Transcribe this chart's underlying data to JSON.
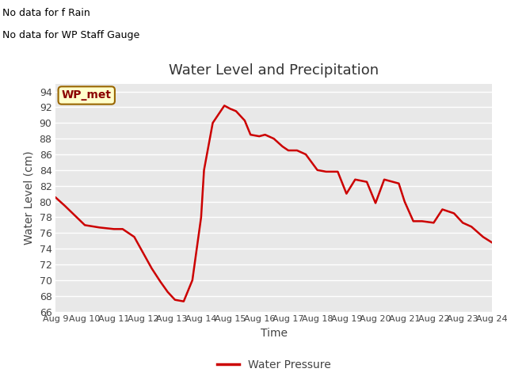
{
  "title": "Water Level and Precipitation",
  "xlabel": "Time",
  "ylabel": "Water Level (cm)",
  "ylim": [
    66,
    95
  ],
  "yticks": [
    66,
    68,
    70,
    72,
    74,
    76,
    78,
    80,
    82,
    84,
    86,
    88,
    90,
    92,
    94
  ],
  "x_labels": [
    "Aug 9",
    "Aug 10",
    "Aug 11",
    "Aug 12",
    "Aug 13",
    "Aug 14",
    "Aug 15",
    "Aug 16",
    "Aug 17",
    "Aug 18",
    "Aug 19",
    "Aug 20",
    "Aug 21",
    "Aug 22",
    "Aug 23",
    "Aug 24"
  ],
  "line_color": "#cc0000",
  "line_width": 1.8,
  "fig_bg_color": "#ffffff",
  "plot_bg_color": "#e8e8e8",
  "grid_color": "#ffffff",
  "annotation_text1": "No data for f Rain",
  "annotation_text2": "No data for WP Staff Gauge",
  "legend_label": "Water Pressure",
  "legend_box_facecolor": "#ffffcc",
  "legend_box_edgecolor": "#996600",
  "legend_text": "WP_met",
  "x_values": [
    9,
    9.3,
    10,
    10.5,
    11,
    11.3,
    11.7,
    12.0,
    12.3,
    12.6,
    12.85,
    13.1,
    13.4,
    13.7,
    14.0,
    14.1,
    14.4,
    14.8,
    15.0,
    15.2,
    15.5,
    15.7,
    16.0,
    16.2,
    16.5,
    16.8,
    17.0,
    17.3,
    17.6,
    18.0,
    18.3,
    18.7,
    19.0,
    19.3,
    19.7,
    20.0,
    20.3,
    20.6,
    20.8,
    21.0,
    21.3,
    21.6,
    22.0,
    22.3,
    22.7,
    23.0,
    23.3,
    23.7,
    24.0
  ],
  "y_values": [
    80.5,
    79.5,
    77.0,
    76.7,
    76.5,
    76.5,
    75.5,
    73.5,
    71.5,
    69.8,
    68.5,
    67.5,
    67.3,
    70.0,
    78.0,
    84.0,
    90.0,
    92.2,
    91.8,
    91.5,
    90.3,
    88.5,
    88.3,
    88.5,
    88.0,
    87.0,
    86.5,
    86.5,
    86.0,
    84.0,
    83.8,
    83.8,
    81.0,
    82.8,
    82.5,
    79.8,
    82.8,
    82.5,
    82.3,
    80.0,
    77.5,
    77.5,
    77.3,
    79.0,
    78.5,
    77.3,
    76.8,
    75.5,
    74.8
  ]
}
